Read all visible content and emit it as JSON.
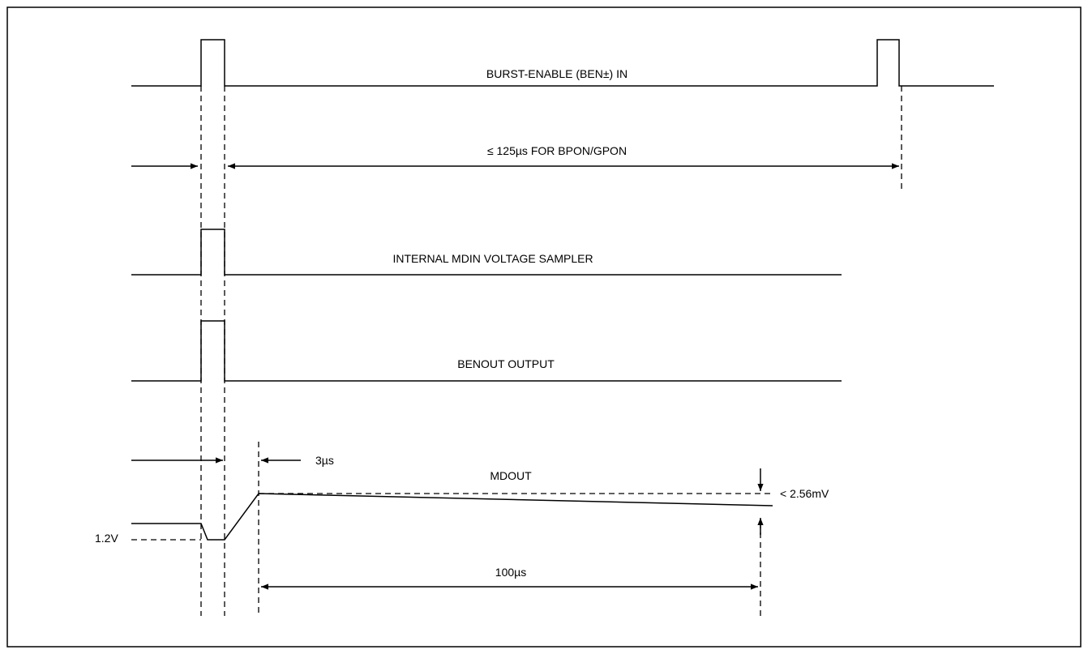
{
  "labels": {
    "burst_enable": "BURST-ENABLE (BEN±) IN",
    "period": "≤ 125µs FOR BPON/GPON",
    "sampler": "INTERNAL MDIN VOLTAGE SAMPLER",
    "benout": "BENOUT OUTPUT",
    "delay": "3µs",
    "mdout": "MDOUT",
    "droop": "< 2.56mV",
    "voltage": "1.2V",
    "hold_time": "100µs"
  }
}
